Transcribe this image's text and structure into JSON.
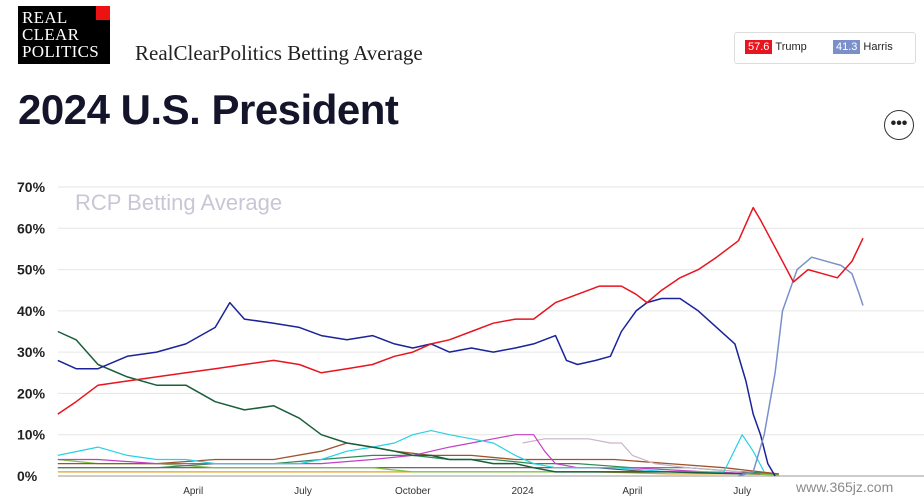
{
  "logo": {
    "line1": "REAL",
    "line2": "CLEAR",
    "line3": "POLITICS"
  },
  "header": {
    "subtitle": "RealClearPolitics Betting Average",
    "title": "2024 U.S. President",
    "more_icon": "ellipsis-icon",
    "more_glyph": "•••"
  },
  "legend": [
    {
      "name": "Trump",
      "value": "57.6",
      "color": "#e8141e"
    },
    {
      "name": "Harris",
      "value": "41.3",
      "color": "#7b8fcb"
    }
  ],
  "watermark": "www.365jz.com",
  "chart_data": {
    "type": "line",
    "title": "RCP Betting Average",
    "xlabel": "",
    "ylabel": "",
    "ylim": [
      0,
      70
    ],
    "y_ticks": [
      "0%",
      "10%",
      "20%",
      "30%",
      "40%",
      "50%",
      "60%",
      "70%"
    ],
    "y_tick_values": [
      0,
      10,
      20,
      30,
      40,
      50,
      60,
      70
    ],
    "x_ticks": [
      {
        "label": "April",
        "t": 2.0
      },
      {
        "label": "July",
        "t": 5.0
      },
      {
        "label": "October",
        "t": 8.0
      },
      {
        "label": "2024",
        "t": 11.0
      },
      {
        "label": "April",
        "t": 14.0
      },
      {
        "label": "July",
        "t": 17.0
      }
    ],
    "x_unit": "months since Jan 2023",
    "grid": true,
    "series": [
      {
        "name": "Trump",
        "color": "#e8141e",
        "width": 1.5,
        "points": [
          [
            -1.7,
            15
          ],
          [
            -1.2,
            18
          ],
          [
            -0.6,
            22
          ],
          [
            0.2,
            23
          ],
          [
            1.0,
            24
          ],
          [
            1.8,
            25
          ],
          [
            2.6,
            26
          ],
          [
            3.4,
            27
          ],
          [
            4.2,
            28
          ],
          [
            4.9,
            27
          ],
          [
            5.5,
            25
          ],
          [
            6.2,
            26
          ],
          [
            6.9,
            27
          ],
          [
            7.5,
            29
          ],
          [
            8.0,
            30
          ],
          [
            8.5,
            32
          ],
          [
            9.0,
            33
          ],
          [
            9.6,
            35
          ],
          [
            10.2,
            37
          ],
          [
            10.8,
            38
          ],
          [
            11.3,
            38
          ],
          [
            11.9,
            42
          ],
          [
            12.5,
            44
          ],
          [
            13.1,
            46
          ],
          [
            13.7,
            46
          ],
          [
            14.1,
            44
          ],
          [
            14.4,
            42
          ],
          [
            14.8,
            45
          ],
          [
            15.3,
            48
          ],
          [
            15.8,
            50
          ],
          [
            16.3,
            53
          ],
          [
            16.9,
            57
          ],
          [
            17.3,
            65
          ],
          [
            17.5,
            62
          ],
          [
            17.8,
            57
          ],
          [
            18.1,
            52
          ],
          [
            18.4,
            47
          ],
          [
            18.8,
            50
          ],
          [
            19.2,
            49
          ],
          [
            19.6,
            48
          ],
          [
            20.0,
            52
          ],
          [
            20.3,
            57.6
          ]
        ]
      },
      {
        "name": "Harris",
        "color": "#7b8fcb",
        "width": 1.5,
        "points": [
          [
            16.9,
            0
          ],
          [
            17.3,
            1
          ],
          [
            17.6,
            10
          ],
          [
            17.9,
            25
          ],
          [
            18.1,
            40
          ],
          [
            18.5,
            50
          ],
          [
            18.9,
            53
          ],
          [
            19.3,
            52
          ],
          [
            19.7,
            51
          ],
          [
            20.0,
            49
          ],
          [
            20.2,
            44
          ],
          [
            20.3,
            41.3
          ]
        ]
      },
      {
        "name": "",
        "color": "#1a2399",
        "width": 1.5,
        "points": [
          [
            -1.7,
            28
          ],
          [
            -1.2,
            26
          ],
          [
            -0.6,
            26
          ],
          [
            0.2,
            29
          ],
          [
            1.0,
            30
          ],
          [
            1.8,
            32
          ],
          [
            2.6,
            36
          ],
          [
            3.0,
            42
          ],
          [
            3.4,
            38
          ],
          [
            4.2,
            37
          ],
          [
            4.9,
            36
          ],
          [
            5.5,
            34
          ],
          [
            6.2,
            33
          ],
          [
            6.9,
            34
          ],
          [
            7.5,
            32
          ],
          [
            8.0,
            31
          ],
          [
            8.5,
            32
          ],
          [
            9.0,
            30
          ],
          [
            9.6,
            31
          ],
          [
            10.2,
            30
          ],
          [
            10.8,
            31
          ],
          [
            11.3,
            32
          ],
          [
            11.9,
            34
          ],
          [
            12.2,
            28
          ],
          [
            12.5,
            27
          ],
          [
            13.0,
            28
          ],
          [
            13.4,
            29
          ],
          [
            13.7,
            35
          ],
          [
            14.1,
            40
          ],
          [
            14.4,
            42
          ],
          [
            14.8,
            43
          ],
          [
            15.3,
            43
          ],
          [
            15.8,
            40
          ],
          [
            16.3,
            36
          ],
          [
            16.8,
            32
          ],
          [
            17.1,
            23
          ],
          [
            17.3,
            15
          ],
          [
            17.5,
            10
          ],
          [
            17.7,
            3
          ],
          [
            17.9,
            0
          ]
        ]
      },
      {
        "name": "",
        "color": "#1a5e3a",
        "width": 1.5,
        "points": [
          [
            -1.7,
            35
          ],
          [
            -1.2,
            33
          ],
          [
            -0.6,
            27
          ],
          [
            0.2,
            24
          ],
          [
            1.0,
            22
          ],
          [
            1.8,
            22
          ],
          [
            2.6,
            18
          ],
          [
            3.4,
            16
          ],
          [
            4.2,
            17
          ],
          [
            4.9,
            14
          ],
          [
            5.5,
            10
          ],
          [
            6.2,
            8
          ],
          [
            6.9,
            7
          ],
          [
            7.5,
            6
          ],
          [
            8.0,
            5
          ],
          [
            8.5,
            5
          ],
          [
            9.0,
            4
          ],
          [
            9.6,
            4
          ],
          [
            10.2,
            3
          ],
          [
            10.8,
            3
          ],
          [
            11.3,
            2
          ],
          [
            11.9,
            1
          ],
          [
            12.5,
            1
          ],
          [
            13.5,
            1
          ],
          [
            15.0,
            1
          ],
          [
            17.0,
            0.5
          ]
        ]
      },
      {
        "name": "",
        "color": "#27d1e5",
        "width": 1.2,
        "points": [
          [
            -1.7,
            5
          ],
          [
            -0.6,
            7
          ],
          [
            0.2,
            5
          ],
          [
            1.0,
            4
          ],
          [
            1.8,
            4
          ],
          [
            2.6,
            3
          ],
          [
            3.4,
            3
          ],
          [
            4.2,
            3
          ],
          [
            4.9,
            3
          ],
          [
            5.5,
            4
          ],
          [
            6.2,
            6
          ],
          [
            6.9,
            7
          ],
          [
            7.5,
            8
          ],
          [
            8.0,
            10
          ],
          [
            8.5,
            11
          ],
          [
            9.0,
            10
          ],
          [
            9.6,
            9
          ],
          [
            10.2,
            8
          ],
          [
            10.8,
            5
          ],
          [
            11.3,
            3
          ],
          [
            11.9,
            2
          ],
          [
            12.5,
            2
          ],
          [
            13.5,
            2
          ],
          [
            15.0,
            1
          ],
          [
            16.5,
            1
          ],
          [
            17.0,
            10
          ],
          [
            17.3,
            6
          ],
          [
            17.6,
            1
          ]
        ]
      },
      {
        "name": "",
        "color": "#c43fc7",
        "width": 1.2,
        "points": [
          [
            -1.7,
            4
          ],
          [
            -0.6,
            4
          ],
          [
            1.0,
            3
          ],
          [
            2.6,
            3
          ],
          [
            4.2,
            3
          ],
          [
            5.5,
            3
          ],
          [
            6.9,
            4
          ],
          [
            8.0,
            5
          ],
          [
            9.0,
            7
          ],
          [
            9.6,
            8
          ],
          [
            10.2,
            9
          ],
          [
            10.8,
            10
          ],
          [
            11.3,
            10
          ],
          [
            11.6,
            6
          ],
          [
            11.9,
            3
          ],
          [
            12.5,
            2
          ],
          [
            14.0,
            2
          ],
          [
            16.0,
            1
          ],
          [
            17.5,
            0.5
          ]
        ]
      },
      {
        "name": "",
        "color": "#c9b4c8",
        "width": 1.2,
        "points": [
          [
            11.0,
            8
          ],
          [
            11.6,
            9
          ],
          [
            12.2,
            9
          ],
          [
            12.8,
            9
          ],
          [
            13.4,
            8
          ],
          [
            13.7,
            8
          ],
          [
            14.0,
            5
          ],
          [
            14.6,
            3
          ],
          [
            15.5,
            2
          ],
          [
            17.0,
            1
          ]
        ]
      },
      {
        "name": "",
        "color": "#a0522d",
        "width": 1.3,
        "points": [
          [
            -1.7,
            3
          ],
          [
            -0.6,
            3
          ],
          [
            1.0,
            3
          ],
          [
            2.6,
            4
          ],
          [
            4.2,
            4
          ],
          [
            5.5,
            6
          ],
          [
            6.2,
            8
          ],
          [
            6.9,
            7
          ],
          [
            7.5,
            6
          ],
          [
            8.5,
            5
          ],
          [
            9.6,
            5
          ],
          [
            10.8,
            4
          ],
          [
            12.0,
            4
          ],
          [
            13.5,
            4
          ],
          [
            15.0,
            3
          ],
          [
            16.5,
            2
          ],
          [
            18.0,
            0.5
          ]
        ]
      },
      {
        "name": "",
        "color": "#2e8b57",
        "width": 1.2,
        "points": [
          [
            -1.7,
            2
          ],
          [
            -0.6,
            2
          ],
          [
            1.0,
            2
          ],
          [
            2.6,
            3
          ],
          [
            4.2,
            3
          ],
          [
            5.5,
            4
          ],
          [
            6.9,
            5
          ],
          [
            8.0,
            5
          ],
          [
            9.0,
            4
          ],
          [
            10.2,
            4
          ],
          [
            11.3,
            3
          ],
          [
            12.5,
            3
          ],
          [
            14.0,
            2
          ],
          [
            15.5,
            2
          ],
          [
            17.0,
            1
          ],
          [
            18.0,
            0.5
          ]
        ]
      },
      {
        "name": "",
        "color": "#7fc241",
        "width": 1.2,
        "points": [
          [
            -1.7,
            4
          ],
          [
            -0.6,
            3
          ],
          [
            1.0,
            3
          ],
          [
            2.6,
            2
          ],
          [
            4.2,
            2
          ],
          [
            5.5,
            2
          ],
          [
            6.9,
            2
          ],
          [
            8.0,
            1
          ],
          [
            9.6,
            1
          ],
          [
            11.3,
            1
          ],
          [
            13.0,
            1
          ],
          [
            15.0,
            1
          ],
          [
            17.0,
            0.5
          ],
          [
            18.0,
            0.3
          ]
        ]
      },
      {
        "name": "",
        "color": "#e3a21a",
        "width": 1.2,
        "points": [
          [
            -1.7,
            1
          ],
          [
            -0.6,
            1
          ],
          [
            1.0,
            1
          ],
          [
            2.6,
            1
          ],
          [
            4.2,
            1
          ],
          [
            5.5,
            1
          ],
          [
            6.9,
            1
          ],
          [
            8.0,
            1
          ],
          [
            9.6,
            1
          ],
          [
            11.3,
            1
          ],
          [
            13.0,
            1
          ],
          [
            15.0,
            0.5
          ],
          [
            17.0,
            0.5
          ],
          [
            18.0,
            0.3
          ]
        ]
      },
      {
        "name": "",
        "color": "#555555",
        "width": 1.1,
        "points": [
          [
            -1.7,
            2
          ],
          [
            -0.6,
            2
          ],
          [
            1.0,
            2
          ],
          [
            2.6,
            2
          ],
          [
            4.2,
            2
          ],
          [
            5.5,
            2
          ],
          [
            6.9,
            2
          ],
          [
            8.0,
            2
          ],
          [
            9.6,
            2
          ],
          [
            11.3,
            2
          ],
          [
            13.0,
            2
          ],
          [
            14.5,
            1
          ],
          [
            16.0,
            1
          ],
          [
            17.5,
            0.5
          ]
        ]
      }
    ]
  }
}
